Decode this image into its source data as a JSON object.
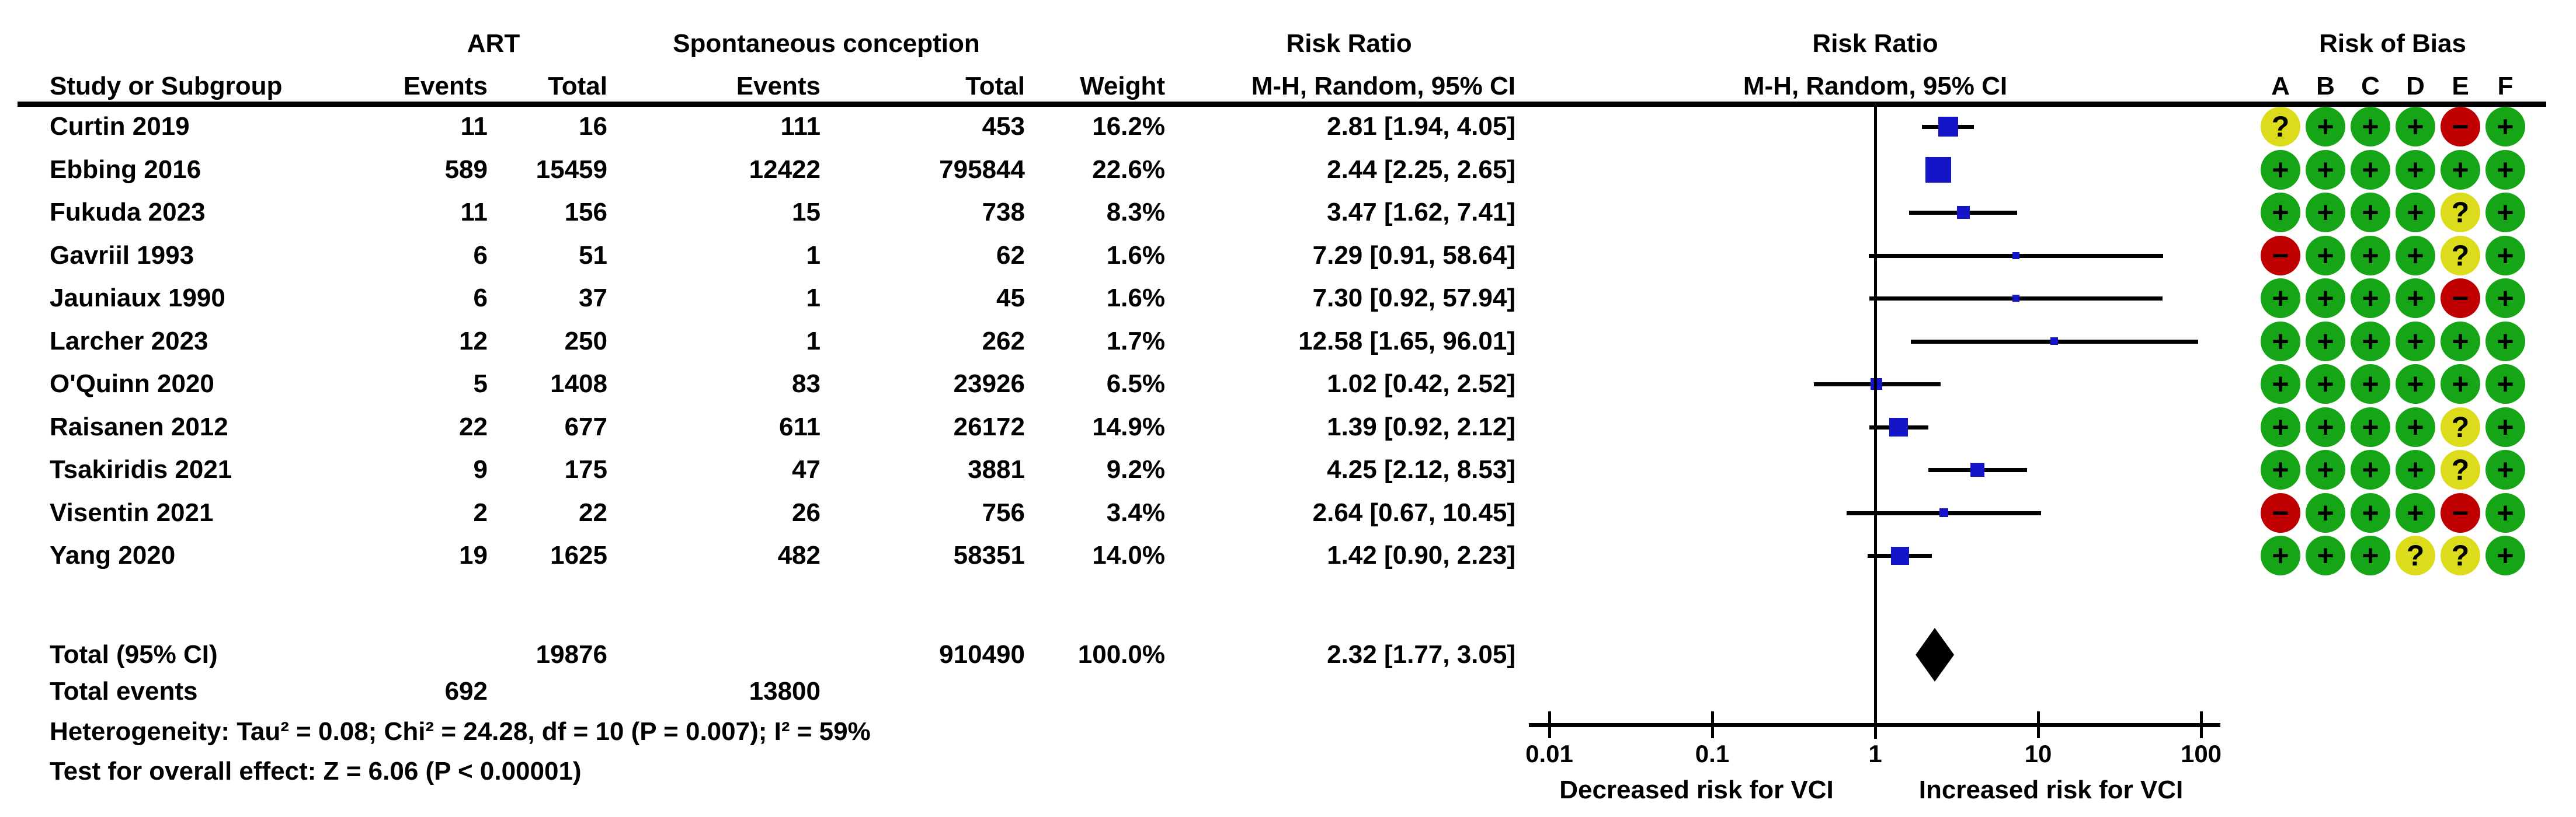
{
  "chart_data": {
    "type": "forest",
    "title": "Risk Ratio forest plot, ART vs Spontaneous conception (outcome VCI)",
    "effect_measure": "Risk Ratio",
    "method": "M-H, Random, 95% CI",
    "headers": {
      "group1": "ART",
      "group2": "Spontaneous conception",
      "risk_ratio": "Risk Ratio",
      "study": "Study or Subgroup",
      "events": "Events",
      "total": "Total",
      "weight": "Weight",
      "mh_random_ci": "M-H, Random, 95% CI",
      "risk_of_bias": "Risk of Bias"
    },
    "rob_letters": [
      "A",
      "B",
      "C",
      "D",
      "E",
      "F"
    ],
    "studies": [
      {
        "name": "Curtin 2019",
        "e1": 11,
        "t1": 16,
        "e2": 111,
        "t2": 453,
        "weight": "16.2%",
        "rr_text": "2.81 [1.94, 4.05]",
        "rr": 2.81,
        "lo": 1.94,
        "hi": 4.05,
        "w": 16.2,
        "rob": [
          "?",
          "+",
          "+",
          "+",
          "-",
          "+"
        ]
      },
      {
        "name": "Ebbing 2016",
        "e1": 589,
        "t1": 15459,
        "e2": 12422,
        "t2": 795844,
        "weight": "22.6%",
        "rr_text": "2.44 [2.25, 2.65]",
        "rr": 2.44,
        "lo": 2.25,
        "hi": 2.65,
        "w": 22.6,
        "rob": [
          "+",
          "+",
          "+",
          "+",
          "+",
          "+"
        ]
      },
      {
        "name": "Fukuda 2023",
        "e1": 11,
        "t1": 156,
        "e2": 15,
        "t2": 738,
        "weight": "8.3%",
        "rr_text": "3.47 [1.62, 7.41]",
        "rr": 3.47,
        "lo": 1.62,
        "hi": 7.41,
        "w": 8.3,
        "rob": [
          "+",
          "+",
          "+",
          "+",
          "?",
          "+"
        ]
      },
      {
        "name": "Gavriil 1993",
        "e1": 6,
        "t1": 51,
        "e2": 1,
        "t2": 62,
        "weight": "1.6%",
        "rr_text": "7.29 [0.91, 58.64]",
        "rr": 7.29,
        "lo": 0.91,
        "hi": 58.64,
        "w": 1.6,
        "rob": [
          "-",
          "+",
          "+",
          "+",
          "?",
          "+"
        ]
      },
      {
        "name": "Jauniaux 1990",
        "e1": 6,
        "t1": 37,
        "e2": 1,
        "t2": 45,
        "weight": "1.6%",
        "rr_text": "7.30 [0.92, 57.94]",
        "rr": 7.3,
        "lo": 0.92,
        "hi": 57.94,
        "w": 1.6,
        "rob": [
          "+",
          "+",
          "+",
          "+",
          "-",
          "+"
        ]
      },
      {
        "name": "Larcher 2023",
        "e1": 12,
        "t1": 250,
        "e2": 1,
        "t2": 262,
        "weight": "1.7%",
        "rr_text": "12.58 [1.65, 96.01]",
        "rr": 12.58,
        "lo": 1.65,
        "hi": 96.01,
        "w": 1.7,
        "rob": [
          "+",
          "+",
          "+",
          "+",
          "+",
          "+"
        ]
      },
      {
        "name": "O'Quinn 2020",
        "e1": 5,
        "t1": 1408,
        "e2": 83,
        "t2": 23926,
        "weight": "6.5%",
        "rr_text": "1.02 [0.42, 2.52]",
        "rr": 1.02,
        "lo": 0.42,
        "hi": 2.52,
        "w": 6.5,
        "rob": [
          "+",
          "+",
          "+",
          "+",
          "+",
          "+"
        ]
      },
      {
        "name": "Raisanen 2012",
        "e1": 22,
        "t1": 677,
        "e2": 611,
        "t2": 26172,
        "weight": "14.9%",
        "rr_text": "1.39 [0.92, 2.12]",
        "rr": 1.39,
        "lo": 0.92,
        "hi": 2.12,
        "w": 14.9,
        "rob": [
          "+",
          "+",
          "+",
          "+",
          "?",
          "+"
        ]
      },
      {
        "name": "Tsakiridis 2021",
        "e1": 9,
        "t1": 175,
        "e2": 47,
        "t2": 3881,
        "weight": "9.2%",
        "rr_text": "4.25 [2.12, 8.53]",
        "rr": 4.25,
        "lo": 2.12,
        "hi": 8.53,
        "w": 9.2,
        "rob": [
          "+",
          "+",
          "+",
          "+",
          "?",
          "+"
        ]
      },
      {
        "name": "Visentin 2021",
        "e1": 2,
        "t1": 22,
        "e2": 26,
        "t2": 756,
        "weight": "3.4%",
        "rr_text": "2.64 [0.67, 10.45]",
        "rr": 2.64,
        "lo": 0.67,
        "hi": 10.45,
        "w": 3.4,
        "rob": [
          "-",
          "+",
          "+",
          "+",
          "-",
          "+"
        ]
      },
      {
        "name": "Yang 2020",
        "e1": 19,
        "t1": 1625,
        "e2": 482,
        "t2": 58351,
        "weight": "14.0%",
        "rr_text": "1.42 [0.90, 2.23]",
        "rr": 1.42,
        "lo": 0.9,
        "hi": 2.23,
        "w": 14.0,
        "rob": [
          "+",
          "+",
          "+",
          "?",
          "?",
          "+"
        ]
      }
    ],
    "total": {
      "label": "Total (95% CI)",
      "t1": 19876,
      "t2": 910490,
      "weight": "100.0%",
      "rr_text": "2.32 [1.77, 3.05]",
      "rr": 2.32,
      "lo": 1.77,
      "hi": 3.05
    },
    "total_events": {
      "label": "Total events",
      "e1": 692,
      "e2": 13800
    },
    "heterogeneity": "Heterogeneity: Tau² = 0.08; Chi² = 24.28, df = 10 (P = 0.007); I² = 59%",
    "overall_effect": "Test for overall effect: Z = 6.06 (P < 0.00001)",
    "axis": {
      "scale": "log",
      "ticks": [
        "0.01",
        "0.1",
        "1",
        "10",
        "100"
      ],
      "xlim": [
        0.01,
        100
      ],
      "left_label": "Decreased risk for VCI",
      "right_label": "Increased risk for VCI"
    },
    "colors": {
      "marker_blue": "#1414C8",
      "rob_green": "#16A516",
      "rob_yellow": "#DCDC1C",
      "rob_red": "#C00000",
      "line_black": "#000000"
    },
    "rob_glyphs": {
      "plus": "+",
      "question": "?",
      "minus": "−"
    }
  }
}
